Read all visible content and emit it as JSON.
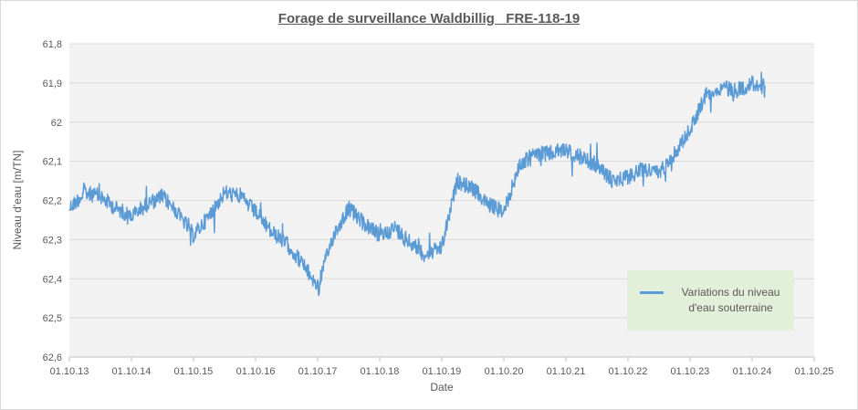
{
  "chart_data": {
    "type": "line",
    "title": "Forage de surveillance Waldbillig   FRE-118-19",
    "xlabel": "Date",
    "ylabel": "Niveau d'eau [m/TN]",
    "ylim": [
      61.8,
      62.6
    ],
    "y_inverted": true,
    "y_ticks": [
      "61,8",
      "61,9",
      "62",
      "62,1",
      "62,2",
      "62,3",
      "62,4",
      "62,5",
      "62,6"
    ],
    "x_ticks": [
      "01.10.13",
      "01.10.14",
      "01.10.15",
      "01.10.16",
      "01.10.17",
      "01.10.18",
      "01.10.19",
      "01.10.20",
      "01.10.21",
      "01.10.22",
      "01.10.23",
      "01.10.24",
      "01.10.25"
    ],
    "grid": true,
    "legend": "bottom-right",
    "series": [
      {
        "name": "Variations du niveau d'eau souterraine",
        "color": "#5b9bd5",
        "x": [
          "01.10.13",
          "01.01.14",
          "01.04.14",
          "01.07.14",
          "01.10.14",
          "01.01.15",
          "01.04.15",
          "01.07.15",
          "01.10.15",
          "01.01.16",
          "01.04.16",
          "01.07.16",
          "01.10.16",
          "01.01.17",
          "01.04.17",
          "01.07.17",
          "01.10.17",
          "01.01.18",
          "01.04.18",
          "01.07.18",
          "01.10.18",
          "01.01.19",
          "01.04.19",
          "01.07.19",
          "01.10.19",
          "01.01.20",
          "01.04.20",
          "01.07.20",
          "01.10.20",
          "01.01.21",
          "01.04.21",
          "01.07.21",
          "01.10.21",
          "01.01.22",
          "01.04.22",
          "01.07.22",
          "01.10.22",
          "01.01.23",
          "01.04.23",
          "01.07.23",
          "01.10.23",
          "01.01.24",
          "01.04.24",
          "01.07.24",
          "01.10.24",
          "15.12.24"
        ],
        "values": [
          62.22,
          62.18,
          62.19,
          62.22,
          62.24,
          62.21,
          62.19,
          62.23,
          62.29,
          62.24,
          62.18,
          62.19,
          62.23,
          62.28,
          62.31,
          62.36,
          62.42,
          62.29,
          62.22,
          62.26,
          62.29,
          62.27,
          62.31,
          62.34,
          62.32,
          62.15,
          62.17,
          62.21,
          62.23,
          62.11,
          62.08,
          62.08,
          62.07,
          62.09,
          62.11,
          62.15,
          62.14,
          62.12,
          62.13,
          62.08,
          62.02,
          61.93,
          61.91,
          61.92,
          61.9,
          61.91
        ]
      }
    ]
  }
}
